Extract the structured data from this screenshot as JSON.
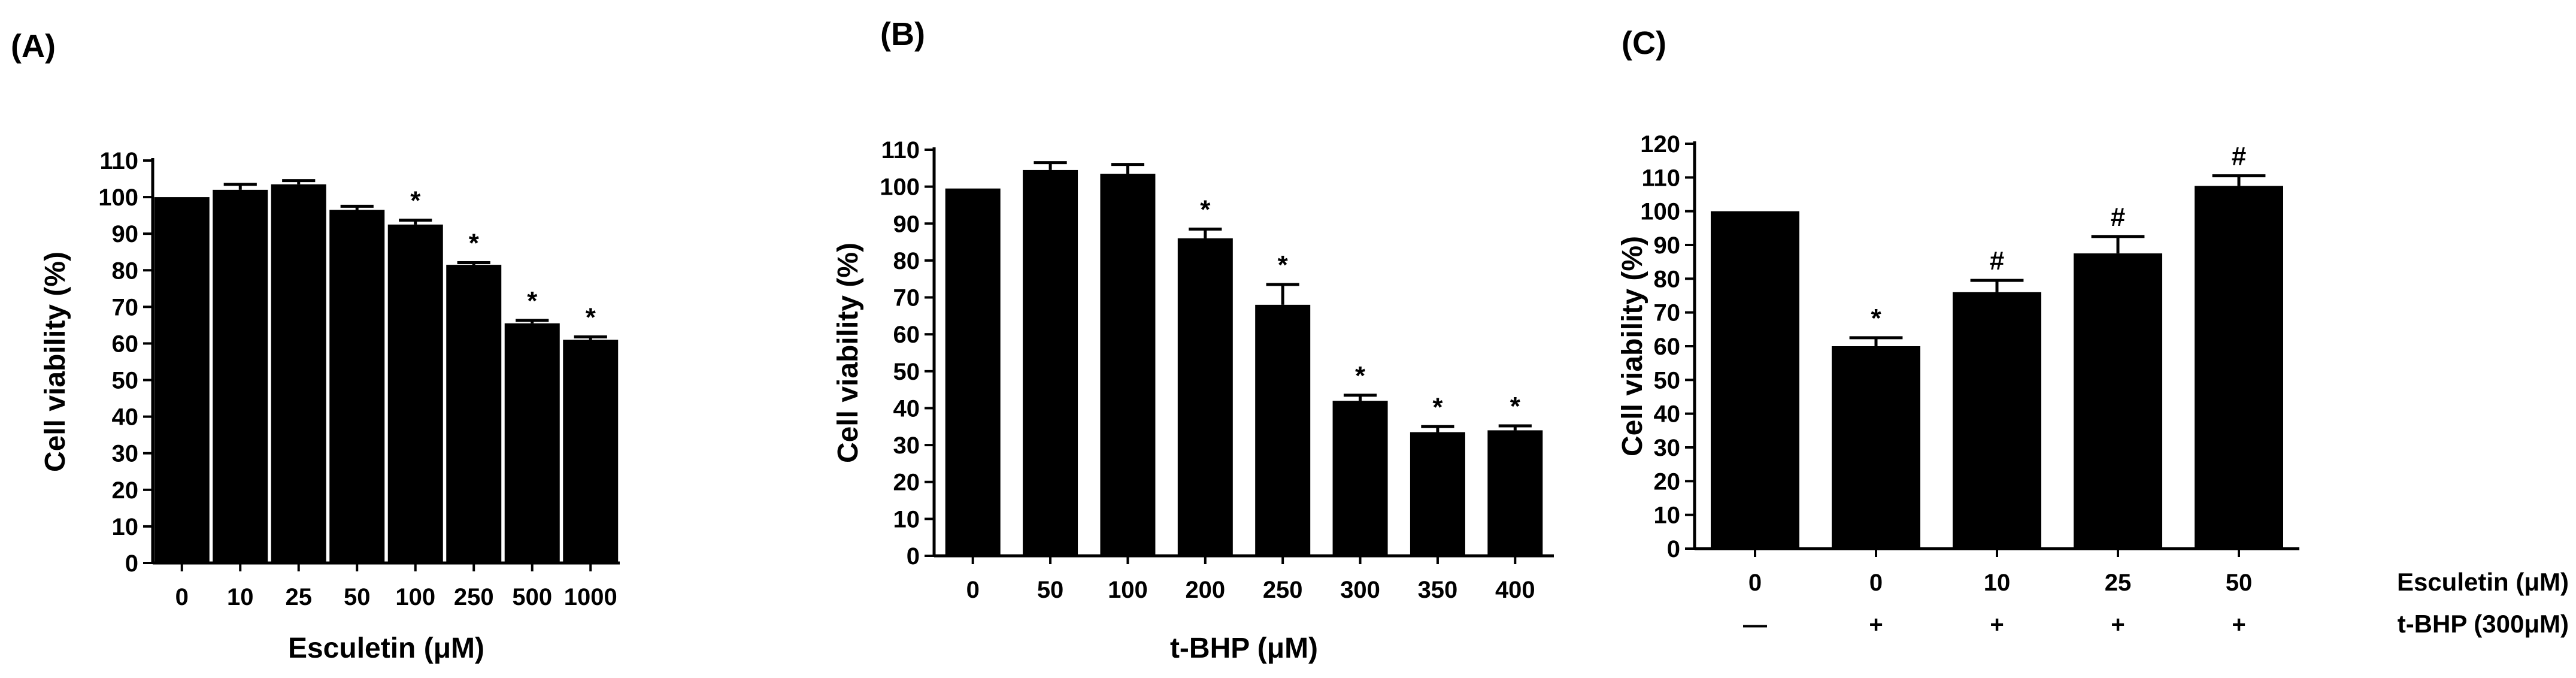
{
  "chart_data": [
    {
      "type": "bar",
      "panel_label": "(A)",
      "categories": [
        "0",
        "10",
        "25",
        "50",
        "100",
        "250",
        "500",
        "1000"
      ],
      "values": [
        100,
        102,
        103.5,
        96.5,
        92.5,
        81.5,
        65.5,
        61
      ],
      "errors": [
        0,
        1.5,
        1,
        1,
        1.2,
        0.6,
        0.8,
        0.8
      ],
      "marks": [
        "",
        "",
        "",
        "",
        "*",
        "*",
        "*",
        "*"
      ],
      "xlabel": "Esculetin (μM)",
      "ylabel": "Cell viability (%)",
      "ylim": [
        0,
        110
      ],
      "yticks": [
        0,
        10,
        20,
        30,
        40,
        50,
        60,
        70,
        80,
        90,
        100,
        110
      ],
      "bar_color": "#000000"
    },
    {
      "type": "bar",
      "panel_label": "(B)",
      "categories": [
        "0",
        "50",
        "100",
        "200",
        "250",
        "300",
        "350",
        "400"
      ],
      "values": [
        99.5,
        104.5,
        103.5,
        86,
        68,
        42,
        33.5,
        34
      ],
      "errors": [
        0,
        2,
        2.5,
        2.5,
        5.5,
        1.5,
        1.5,
        1.2
      ],
      "marks": [
        "",
        "",
        "",
        "*",
        "*",
        "*",
        "*",
        "*"
      ],
      "xlabel": "t-BHP (μM)",
      "ylabel": "Cell viability (%)",
      "ylim": [
        0,
        110
      ],
      "yticks": [
        0,
        10,
        20,
        30,
        40,
        50,
        60,
        70,
        80,
        90,
        100,
        110
      ],
      "bar_color": "#000000"
    },
    {
      "type": "bar",
      "panel_label": "(C)",
      "categories": [
        "0",
        "0",
        "10",
        "25",
        "50"
      ],
      "category_row_label": "Esculetin (μM)",
      "second_row": [
        "—",
        "+",
        "+",
        "+",
        "+"
      ],
      "second_row_label": "t-BHP (300μM)",
      "values": [
        100,
        60,
        76,
        87.5,
        107.5
      ],
      "errors": [
        0,
        2.5,
        3.5,
        5,
        3
      ],
      "marks": [
        "",
        "*",
        "#",
        "#",
        "#"
      ],
      "ylabel": "Cell viability (%)",
      "ylim": [
        0,
        120
      ],
      "yticks": [
        0,
        10,
        20,
        30,
        40,
        50,
        60,
        70,
        80,
        90,
        100,
        110,
        120
      ],
      "bar_color": "#000000"
    }
  ]
}
